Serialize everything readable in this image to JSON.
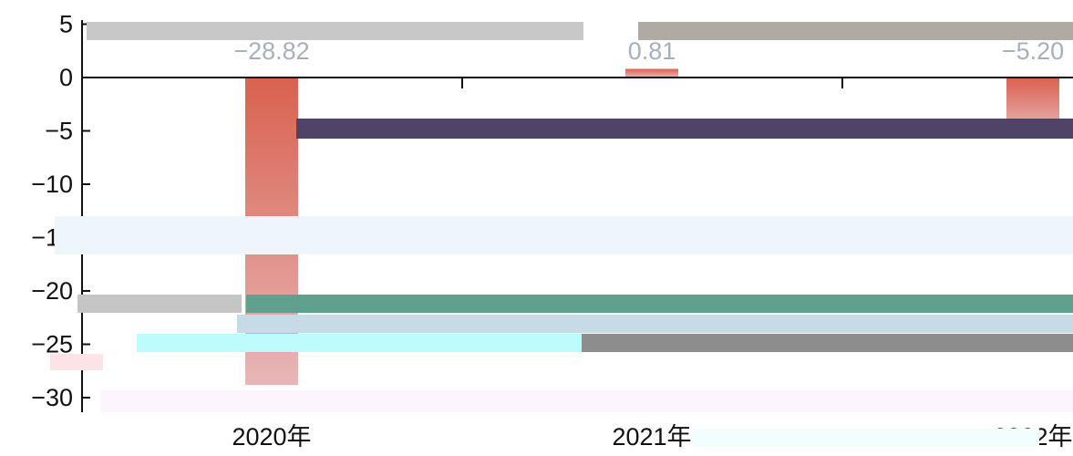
{
  "chart_data": {
    "type": "bar",
    "categories": [
      "2020年",
      "2021年",
      "2022年"
    ],
    "series": [
      {
        "values": [
          -28.82,
          0.81,
          -5.2
        ],
        "labels": [
          "−28.82",
          "0.81",
          "−5.20"
        ],
        "color_top": "#d9614f",
        "color_bottom": "#e8b6b8"
      }
    ],
    "y_ticks": [
      "5",
      "0",
      "−5",
      "−10",
      "−15",
      "−20",
      "−25",
      "−30"
    ],
    "y_tick_values": [
      5,
      0,
      -5,
      -10,
      -15,
      -20,
      -25,
      -30
    ],
    "ylim": [
      -30,
      5
    ],
    "grid": false,
    "title": "",
    "xlabel": "",
    "ylabel": ""
  },
  "colors": {
    "axis": "#111111",
    "data_label": "#a6b0bd",
    "bar_gradient_top": "#d9614f",
    "bar_gradient_bottom": "#e8b6b8"
  }
}
